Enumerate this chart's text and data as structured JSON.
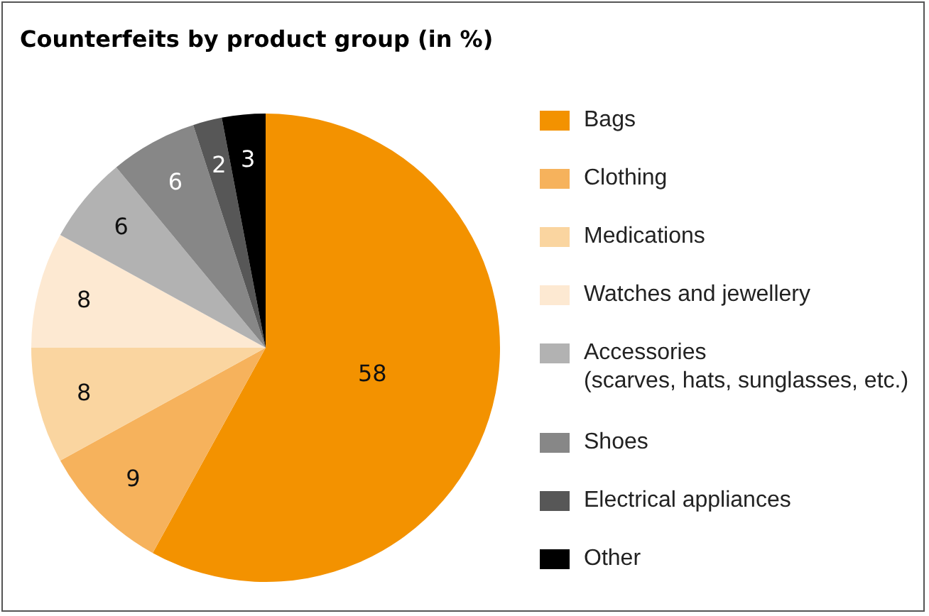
{
  "chart_data": {
    "type": "pie",
    "title": "Counterfeits by product group (in %)",
    "categories": [
      "Bags",
      "Clothing",
      "Medications",
      "Watches and jewellery",
      "Accessories\n(scarves, hats, sunglasses, etc.)",
      "Shoes",
      "Electrical appliances",
      "Other"
    ],
    "values": [
      58,
      9,
      8,
      8,
      6,
      6,
      2,
      3
    ],
    "colors": [
      "#f39200",
      "#f6b25c",
      "#fad5a0",
      "#fde9d2",
      "#b2b2b2",
      "#878787",
      "#575757",
      "#000000"
    ],
    "data_labels": true,
    "legend": "right"
  }
}
